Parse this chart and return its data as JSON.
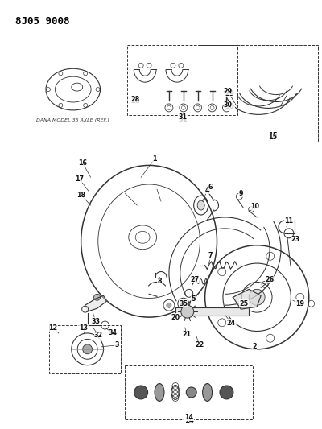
{
  "title": "8J05 9008",
  "bg_color": "#ffffff",
  "text_color": "#000000",
  "figsize": [
    4.0,
    5.33
  ],
  "dpi": 100,
  "dana_text": "DANA MODEL 35 AXLE (REF.)"
}
